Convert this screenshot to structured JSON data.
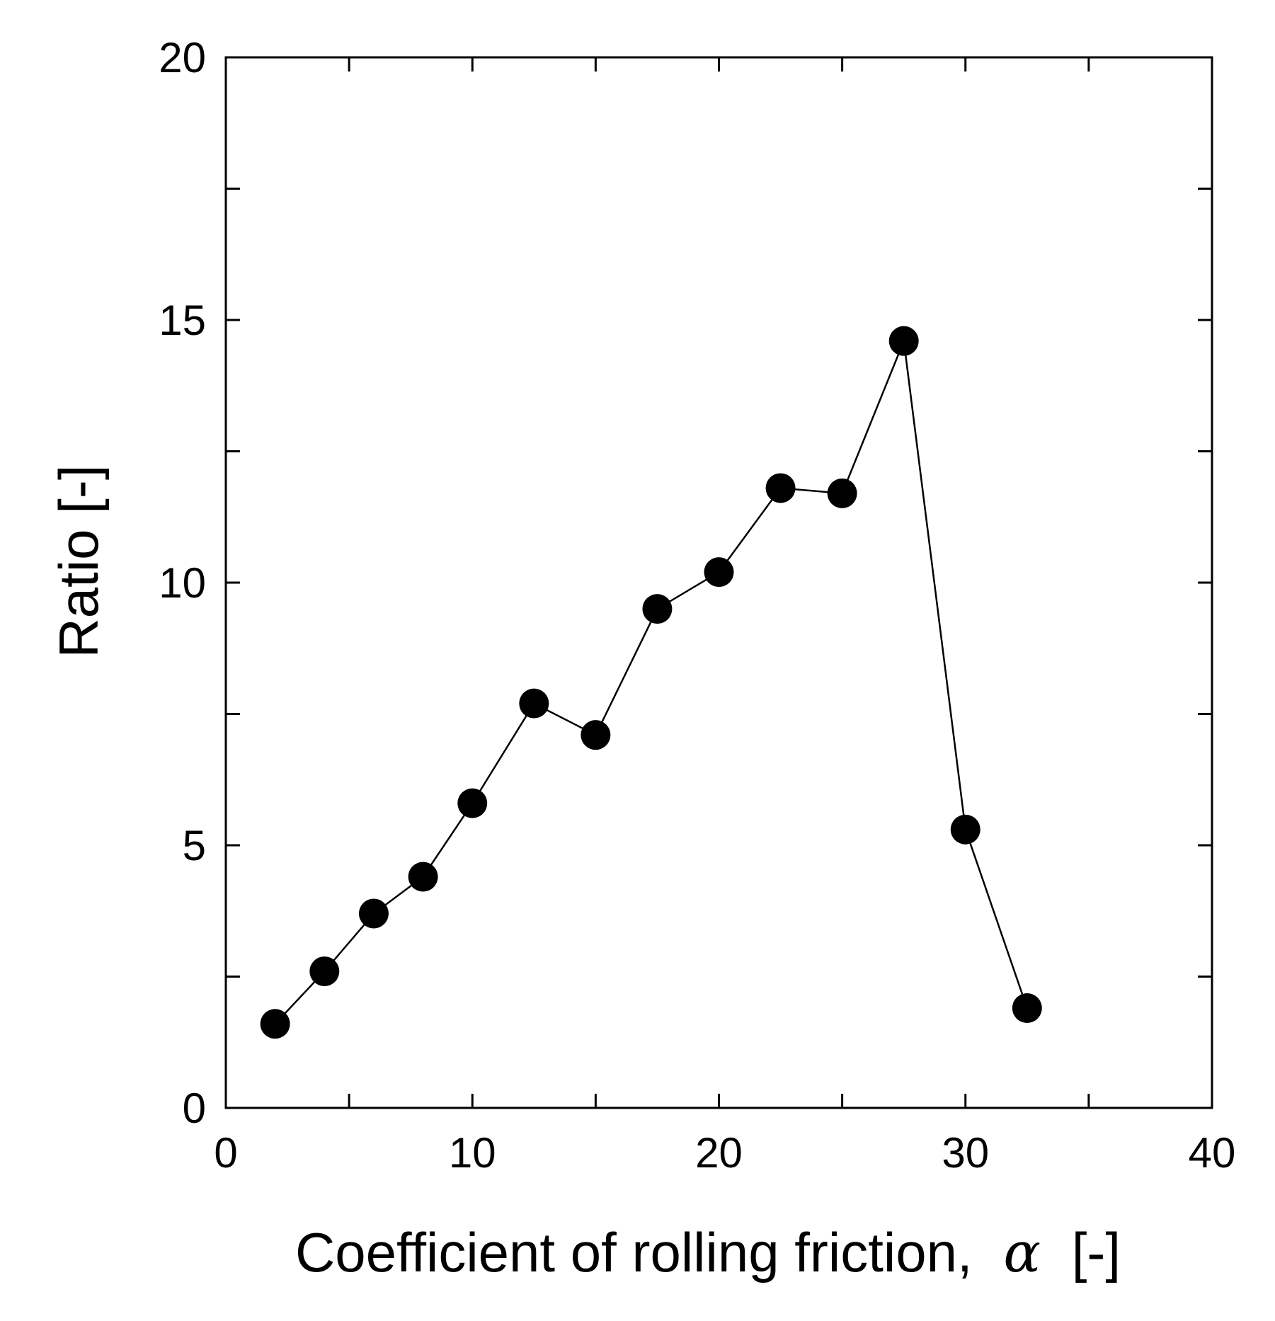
{
  "chart_data": {
    "type": "line",
    "title": "",
    "xlabel": "Coefficient of rolling friction,",
    "xlabel_symbol": "α",
    "xlabel_unit": "[-]",
    "ylabel": "Ratio [-]",
    "xlim": [
      0,
      40
    ],
    "ylim": [
      0,
      20
    ],
    "x_tick_labels": [
      "0",
      "10",
      "20",
      "30",
      "40"
    ],
    "y_tick_labels": [
      "0",
      "5",
      "10",
      "15",
      "20"
    ],
    "x_minor_tick_values": [
      5,
      15,
      25,
      35
    ],
    "y_minor_tick_values": [
      2.5,
      7.5,
      12.5,
      17.5
    ],
    "grid": false,
    "legend": "none",
    "marker": "filled-circle",
    "color": "#000000",
    "series": [
      {
        "x": [
          2,
          4,
          6,
          8,
          10,
          12.5,
          15,
          17.5,
          20,
          22.5,
          25,
          27.5,
          30,
          32.5
        ],
        "y": [
          1.6,
          2.6,
          3.7,
          4.4,
          5.8,
          7.7,
          7.1,
          9.5,
          10.2,
          11.8,
          11.7,
          14.6,
          5.3,
          1.9
        ]
      }
    ]
  }
}
